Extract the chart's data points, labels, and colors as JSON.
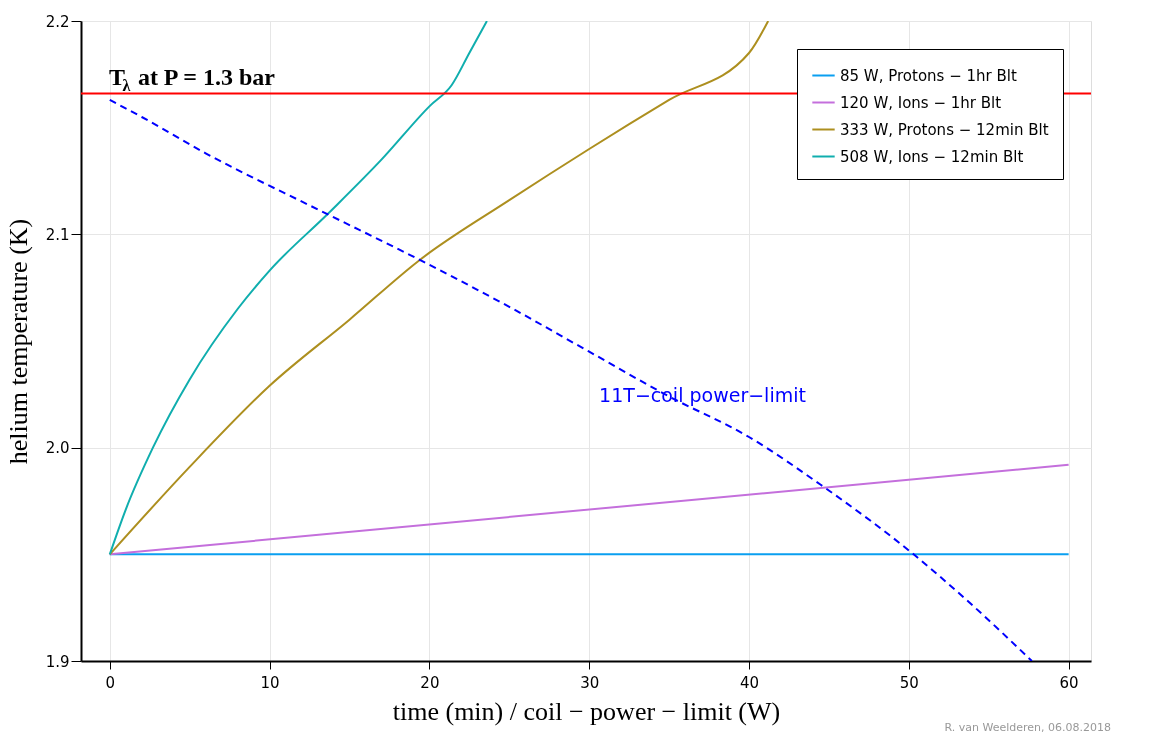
{
  "chart_data": {
    "type": "line",
    "xlabel": "time (min) / coil − power − limit (W)",
    "ylabel": "helium temperature (K)",
    "xlim": [
      -1.8,
      61.4
    ],
    "ylim": [
      1.9,
      2.2
    ],
    "xticks": [
      0,
      10,
      20,
      30,
      40,
      50,
      60
    ],
    "yticks": [
      1.9,
      {
        "value": 2.0,
        "label": "2.0"
      },
      2.1,
      2.2
    ],
    "grid": true,
    "legend": "top right",
    "line_style": "solid",
    "series": [
      {
        "name": "85 W, Protons − 1hr Blt",
        "color": "#0a9ff0",
        "x": [
          0,
          60
        ],
        "values": [
          1.95,
          1.95
        ]
      },
      {
        "name": "120 W, Ions − 1hr Blt",
        "color": "#c46fdc",
        "x": [
          0,
          60
        ],
        "values": [
          1.95,
          1.992
        ]
      },
      {
        "name": "333 W, Protons − 12min Blt",
        "color": "#ad8f1f",
        "x": [
          0,
          5,
          10,
          15,
          19.4,
          25,
          30,
          35,
          40,
          41.2
        ],
        "values": [
          1.95,
          1.991,
          2.029,
          2.06,
          2.088,
          2.116,
          2.14,
          2.163,
          2.185,
          2.2
        ]
      },
      {
        "name": "508 W, Ions − 12min Blt",
        "color": "#10aeae",
        "x": [
          0,
          1,
          2.7,
          5,
          8,
          10,
          13.7,
          17,
          20,
          21.4,
          22.5,
          23.6
        ],
        "values": [
          1.95,
          1.971,
          2.0,
          2.032,
          2.065,
          2.083,
          2.11,
          2.135,
          2.16,
          2.17,
          2.185,
          2.2
        ]
      },
      {
        "name": "11T−coil power−limit",
        "color": "#0000ff",
        "line_style": "dashed",
        "x": [
          0,
          2,
          6,
          13.2,
          19.4,
          25,
          30,
          35,
          40,
          44.6,
          50.3,
          54,
          57.7
        ],
        "values": [
          2.163,
          2.155,
          2.138,
          2.111,
          2.088,
          2.066,
          2.045,
          2.024,
          2.005,
          1.982,
          1.95,
          1.926,
          1.9
        ]
      }
    ],
    "ref_lines": [
      {
        "axis": "y",
        "value": 2.166,
        "color": "#ff0000"
      }
    ],
    "annotations": [
      "T$_{λ}$ at P = 1.3 bar",
      "R. van Weelderen, 06.08.2018"
    ]
  }
}
